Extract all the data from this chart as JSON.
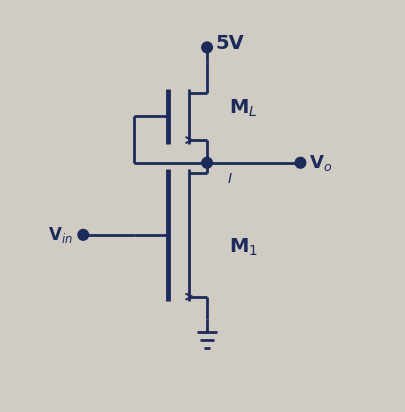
{
  "bg_color": "#d0cbc3",
  "line_color": "#1c2b5a",
  "fig_width": 4.06,
  "fig_height": 4.12,
  "dpi": 100,
  "vdd_label": "5V",
  "vo_label": "V$_o$",
  "vin_label": "V$_{in}$",
  "ml_label": "M$_L$",
  "m1_label": "M$_1$",
  "lw": 2.0,
  "lw_thick": 3.5,
  "dot_r": 0.12
}
